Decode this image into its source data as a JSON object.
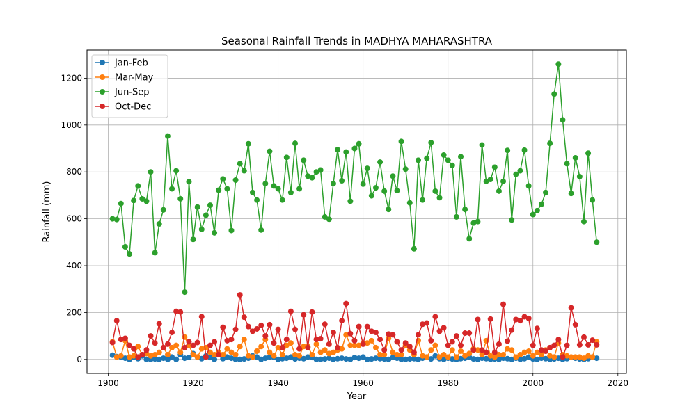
{
  "chart_data": {
    "type": "line",
    "title": "Seasonal Rainfall Trends in MADHYA MAHARASHTRA",
    "xlabel": "Year",
    "ylabel": "Rainfall (mm)",
    "xlim": [
      1895,
      2022
    ],
    "ylim": [
      -60,
      1320
    ],
    "xticks": [
      1900,
      1920,
      1940,
      1960,
      1980,
      2000,
      2020
    ],
    "yticks": [
      0,
      200,
      400,
      600,
      800,
      1000,
      1200
    ],
    "grid": true,
    "legend_position": "top-left",
    "x": [
      1901,
      1902,
      1903,
      1904,
      1905,
      1906,
      1907,
      1908,
      1909,
      1910,
      1911,
      1912,
      1913,
      1914,
      1915,
      1916,
      1917,
      1918,
      1919,
      1920,
      1921,
      1922,
      1923,
      1924,
      1925,
      1926,
      1927,
      1928,
      1929,
      1930,
      1931,
      1932,
      1933,
      1934,
      1935,
      1936,
      1937,
      1938,
      1939,
      1940,
      1941,
      1942,
      1943,
      1944,
      1945,
      1946,
      1947,
      1948,
      1949,
      1950,
      1951,
      1952,
      1953,
      1954,
      1955,
      1956,
      1957,
      1958,
      1959,
      1960,
      1961,
      1962,
      1963,
      1964,
      1965,
      1966,
      1967,
      1968,
      1969,
      1970,
      1971,
      1972,
      1973,
      1974,
      1975,
      1976,
      1977,
      1978,
      1979,
      1980,
      1981,
      1982,
      1983,
      1984,
      1985,
      1986,
      1987,
      1988,
      1989,
      1990,
      1991,
      1992,
      1993,
      1994,
      1995,
      1996,
      1997,
      1998,
      1999,
      2000,
      2001,
      2002,
      2003,
      2004,
      2005,
      2006,
      2007,
      2008,
      2009,
      2010,
      2011,
      2012,
      2013,
      2014,
      2015
    ],
    "series": [
      {
        "name": "Jan-Feb",
        "color": "#1f77b4",
        "values": [
          18,
          12,
          10,
          5,
          0,
          10,
          3,
          15,
          0,
          0,
          2,
          0,
          5,
          0,
          10,
          0,
          20,
          5,
          8,
          25,
          10,
          3,
          15,
          8,
          0,
          30,
          3,
          10,
          5,
          0,
          0,
          2,
          5,
          15,
          10,
          0,
          5,
          10,
          8,
          0,
          3,
          5,
          10,
          2,
          5,
          3,
          10,
          8,
          0,
          0,
          2,
          5,
          0,
          3,
          5,
          2,
          0,
          8,
          5,
          10,
          0,
          2,
          5,
          3,
          2,
          0,
          8,
          5,
          0,
          0,
          2,
          3,
          0,
          5,
          10,
          2,
          15,
          3,
          0,
          5,
          2,
          0,
          3,
          5,
          10,
          2,
          0,
          5,
          3,
          0,
          2,
          0,
          5,
          3,
          0,
          5,
          0,
          3,
          10,
          2,
          0,
          5,
          3,
          0,
          2,
          5,
          0,
          3,
          8,
          5,
          2,
          0,
          3,
          10,
          5
        ]
      },
      {
        "name": "Mar-May",
        "color": "#ff7f0e",
        "values": [
          75,
          10,
          15,
          80,
          10,
          15,
          55,
          20,
          25,
          15,
          20,
          30,
          50,
          20,
          50,
          60,
          30,
          95,
          60,
          20,
          10,
          45,
          50,
          30,
          20,
          30,
          20,
          45,
          30,
          20,
          55,
          85,
          15,
          10,
          35,
          55,
          85,
          30,
          15,
          50,
          20,
          60,
          70,
          20,
          15,
          55,
          55,
          20,
          65,
          30,
          40,
          25,
          30,
          40,
          45,
          105,
          60,
          60,
          60,
          70,
          70,
          80,
          50,
          20,
          20,
          90,
          30,
          20,
          20,
          60,
          40,
          20,
          80,
          15,
          10,
          40,
          60,
          10,
          20,
          10,
          40,
          10,
          35,
          15,
          25,
          45,
          40,
          20,
          80,
          15,
          10,
          20,
          20,
          45,
          40,
          10,
          20,
          30,
          35,
          15,
          30,
          20,
          40,
          15,
          10,
          70,
          20,
          15,
          10,
          10,
          10,
          5,
          15,
          10,
          75
        ]
      },
      {
        "name": "Jun-Sep",
        "color": "#2ca02c",
        "values": [
          600,
          597,
          665,
          480,
          450,
          678,
          740,
          685,
          675,
          800,
          455,
          578,
          638,
          953,
          728,
          805,
          685,
          287,
          758,
          512,
          650,
          555,
          615,
          658,
          540,
          722,
          770,
          728,
          550,
          765,
          835,
          805,
          920,
          712,
          680,
          552,
          750,
          888,
          740,
          728,
          680,
          862,
          712,
          922,
          728,
          850,
          782,
          775,
          800,
          808,
          608,
          598,
          750,
          895,
          762,
          885,
          675,
          900,
          920,
          748,
          815,
          698,
          732,
          842,
          718,
          640,
          782,
          720,
          930,
          812,
          668,
          472,
          850,
          680,
          858,
          925,
          718,
          690,
          872,
          850,
          828,
          608,
          865,
          640,
          515,
          582,
          588,
          915,
          760,
          768,
          820,
          718,
          760,
          892,
          595,
          790,
          805,
          893,
          740,
          618,
          635,
          662,
          712,
          922,
          1132,
          1260,
          1022,
          835,
          708,
          860,
          780,
          588,
          880,
          680,
          500
        ]
      },
      {
        "name": "Oct-Dec",
        "color": "#d62728",
        "values": [
          72,
          165,
          85,
          90,
          60,
          45,
          10,
          20,
          40,
          100,
          70,
          152,
          50,
          65,
          115,
          205,
          202,
          50,
          75,
          60,
          72,
          182,
          10,
          60,
          75,
          20,
          137,
          80,
          85,
          128,
          275,
          180,
          140,
          120,
          130,
          145,
          100,
          148,
          70,
          128,
          50,
          85,
          205,
          128,
          45,
          190,
          50,
          202,
          85,
          88,
          150,
          65,
          115,
          50,
          165,
          238,
          110,
          80,
          140,
          65,
          140,
          120,
          115,
          85,
          40,
          108,
          105,
          75,
          40,
          70,
          55,
          30,
          105,
          150,
          155,
          80,
          182,
          120,
          135,
          60,
          75,
          100,
          60,
          112,
          112,
          40,
          170,
          40,
          30,
          172,
          30,
          65,
          235,
          78,
          125,
          170,
          165,
          182,
          175,
          60,
          132,
          40,
          35,
          50,
          60,
          85,
          10,
          60,
          220,
          148,
          62,
          95,
          62,
          82,
          62
        ]
      }
    ]
  }
}
